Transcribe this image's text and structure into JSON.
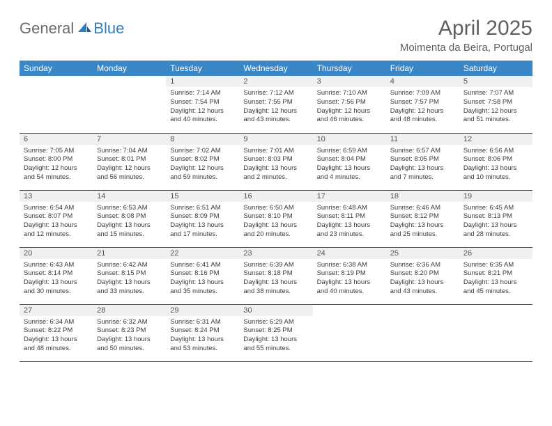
{
  "logo": {
    "text_general": "General",
    "text_blue": "Blue"
  },
  "header": {
    "title": "April 2025",
    "location": "Moimenta da Beira, Portugal"
  },
  "colors": {
    "header_bg": "#3a87c8",
    "header_text": "#ffffff",
    "daynum_bg": "#eef0f2",
    "daynum_text": "#555555",
    "body_text": "#3a3a3a",
    "cell_border": "#2a5885",
    "title_text": "#5f5f5f",
    "logo_gray": "#6a6a6a",
    "logo_blue": "#2f7fbf"
  },
  "typography": {
    "title_fontsize": 30,
    "location_fontsize": 15,
    "dayheader_fontsize": 12,
    "daynum_fontsize": 11,
    "daytext_fontsize": 9.5
  },
  "calendar": {
    "day_headers": [
      "Sunday",
      "Monday",
      "Tuesday",
      "Wednesday",
      "Thursday",
      "Friday",
      "Saturday"
    ],
    "weeks": [
      [
        null,
        null,
        {
          "num": "1",
          "sunrise": "Sunrise: 7:14 AM",
          "sunset": "Sunset: 7:54 PM",
          "daylight": "Daylight: 12 hours and 40 minutes."
        },
        {
          "num": "2",
          "sunrise": "Sunrise: 7:12 AM",
          "sunset": "Sunset: 7:55 PM",
          "daylight": "Daylight: 12 hours and 43 minutes."
        },
        {
          "num": "3",
          "sunrise": "Sunrise: 7:10 AM",
          "sunset": "Sunset: 7:56 PM",
          "daylight": "Daylight: 12 hours and 46 minutes."
        },
        {
          "num": "4",
          "sunrise": "Sunrise: 7:09 AM",
          "sunset": "Sunset: 7:57 PM",
          "daylight": "Daylight: 12 hours and 48 minutes."
        },
        {
          "num": "5",
          "sunrise": "Sunrise: 7:07 AM",
          "sunset": "Sunset: 7:58 PM",
          "daylight": "Daylight: 12 hours and 51 minutes."
        }
      ],
      [
        {
          "num": "6",
          "sunrise": "Sunrise: 7:05 AM",
          "sunset": "Sunset: 8:00 PM",
          "daylight": "Daylight: 12 hours and 54 minutes."
        },
        {
          "num": "7",
          "sunrise": "Sunrise: 7:04 AM",
          "sunset": "Sunset: 8:01 PM",
          "daylight": "Daylight: 12 hours and 56 minutes."
        },
        {
          "num": "8",
          "sunrise": "Sunrise: 7:02 AM",
          "sunset": "Sunset: 8:02 PM",
          "daylight": "Daylight: 12 hours and 59 minutes."
        },
        {
          "num": "9",
          "sunrise": "Sunrise: 7:01 AM",
          "sunset": "Sunset: 8:03 PM",
          "daylight": "Daylight: 13 hours and 2 minutes."
        },
        {
          "num": "10",
          "sunrise": "Sunrise: 6:59 AM",
          "sunset": "Sunset: 8:04 PM",
          "daylight": "Daylight: 13 hours and 4 minutes."
        },
        {
          "num": "11",
          "sunrise": "Sunrise: 6:57 AM",
          "sunset": "Sunset: 8:05 PM",
          "daylight": "Daylight: 13 hours and 7 minutes."
        },
        {
          "num": "12",
          "sunrise": "Sunrise: 6:56 AM",
          "sunset": "Sunset: 8:06 PM",
          "daylight": "Daylight: 13 hours and 10 minutes."
        }
      ],
      [
        {
          "num": "13",
          "sunrise": "Sunrise: 6:54 AM",
          "sunset": "Sunset: 8:07 PM",
          "daylight": "Daylight: 13 hours and 12 minutes."
        },
        {
          "num": "14",
          "sunrise": "Sunrise: 6:53 AM",
          "sunset": "Sunset: 8:08 PM",
          "daylight": "Daylight: 13 hours and 15 minutes."
        },
        {
          "num": "15",
          "sunrise": "Sunrise: 6:51 AM",
          "sunset": "Sunset: 8:09 PM",
          "daylight": "Daylight: 13 hours and 17 minutes."
        },
        {
          "num": "16",
          "sunrise": "Sunrise: 6:50 AM",
          "sunset": "Sunset: 8:10 PM",
          "daylight": "Daylight: 13 hours and 20 minutes."
        },
        {
          "num": "17",
          "sunrise": "Sunrise: 6:48 AM",
          "sunset": "Sunset: 8:11 PM",
          "daylight": "Daylight: 13 hours and 23 minutes."
        },
        {
          "num": "18",
          "sunrise": "Sunrise: 6:46 AM",
          "sunset": "Sunset: 8:12 PM",
          "daylight": "Daylight: 13 hours and 25 minutes."
        },
        {
          "num": "19",
          "sunrise": "Sunrise: 6:45 AM",
          "sunset": "Sunset: 8:13 PM",
          "daylight": "Daylight: 13 hours and 28 minutes."
        }
      ],
      [
        {
          "num": "20",
          "sunrise": "Sunrise: 6:43 AM",
          "sunset": "Sunset: 8:14 PM",
          "daylight": "Daylight: 13 hours and 30 minutes."
        },
        {
          "num": "21",
          "sunrise": "Sunrise: 6:42 AM",
          "sunset": "Sunset: 8:15 PM",
          "daylight": "Daylight: 13 hours and 33 minutes."
        },
        {
          "num": "22",
          "sunrise": "Sunrise: 6:41 AM",
          "sunset": "Sunset: 8:16 PM",
          "daylight": "Daylight: 13 hours and 35 minutes."
        },
        {
          "num": "23",
          "sunrise": "Sunrise: 6:39 AM",
          "sunset": "Sunset: 8:18 PM",
          "daylight": "Daylight: 13 hours and 38 minutes."
        },
        {
          "num": "24",
          "sunrise": "Sunrise: 6:38 AM",
          "sunset": "Sunset: 8:19 PM",
          "daylight": "Daylight: 13 hours and 40 minutes."
        },
        {
          "num": "25",
          "sunrise": "Sunrise: 6:36 AM",
          "sunset": "Sunset: 8:20 PM",
          "daylight": "Daylight: 13 hours and 43 minutes."
        },
        {
          "num": "26",
          "sunrise": "Sunrise: 6:35 AM",
          "sunset": "Sunset: 8:21 PM",
          "daylight": "Daylight: 13 hours and 45 minutes."
        }
      ],
      [
        {
          "num": "27",
          "sunrise": "Sunrise: 6:34 AM",
          "sunset": "Sunset: 8:22 PM",
          "daylight": "Daylight: 13 hours and 48 minutes."
        },
        {
          "num": "28",
          "sunrise": "Sunrise: 6:32 AM",
          "sunset": "Sunset: 8:23 PM",
          "daylight": "Daylight: 13 hours and 50 minutes."
        },
        {
          "num": "29",
          "sunrise": "Sunrise: 6:31 AM",
          "sunset": "Sunset: 8:24 PM",
          "daylight": "Daylight: 13 hours and 53 minutes."
        },
        {
          "num": "30",
          "sunrise": "Sunrise: 6:29 AM",
          "sunset": "Sunset: 8:25 PM",
          "daylight": "Daylight: 13 hours and 55 minutes."
        },
        null,
        null,
        null
      ]
    ]
  }
}
